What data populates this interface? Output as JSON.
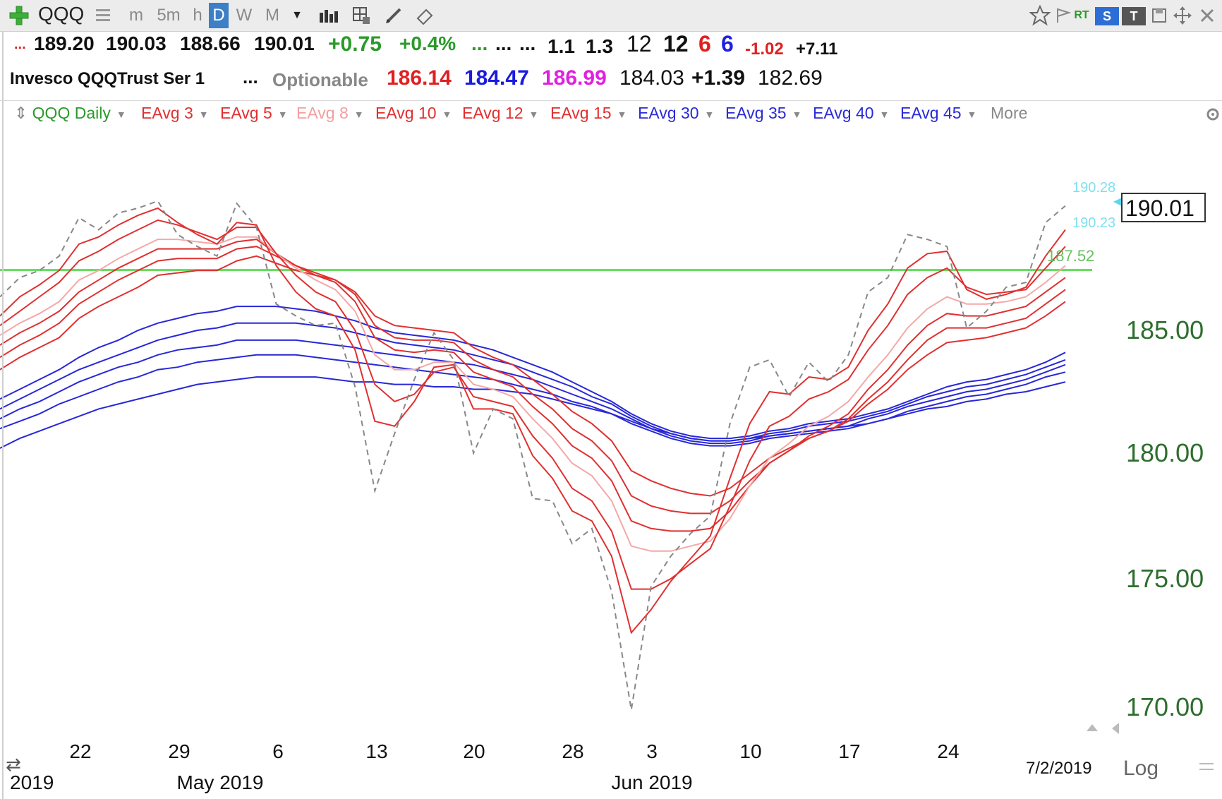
{
  "toolbar": {
    "symbol": "QQQ",
    "intervals": [
      "m",
      "5m",
      "h",
      "D",
      "W",
      "M"
    ],
    "selected_interval": "D",
    "rt_label": "RT",
    "s_label": "S",
    "t_label": "T"
  },
  "quote_row1": {
    "lead": "...",
    "open": "189.20",
    "high": "190.03",
    "low": "188.66",
    "close": "190.01",
    "change": "+0.75",
    "change_pct": "+0.4%",
    "dots1": "...",
    "dots2": "...",
    "dots3": "...",
    "v1": "1.1",
    "v2": "1.3",
    "v3": "12",
    "v4": "12",
    "v5": "6",
    "v6": "6",
    "v7": "-1.02",
    "v8": "+7.11"
  },
  "quote_row2": {
    "name": "Invesco QQQTrust Ser 1",
    "dots": "...",
    "optionable": "Optionable",
    "p1": "186.14",
    "p2": "184.47",
    "p3": "186.99",
    "p4": "184.03",
    "p5": "+1.39",
    "p6": "182.69"
  },
  "studies": {
    "main": "QQQ Daily",
    "items": [
      {
        "label": "EAvg 3",
        "color": "#e03030"
      },
      {
        "label": "EAvg 5",
        "color": "#e03030"
      },
      {
        "label": "EAvg 8",
        "color": "#f2a0a0"
      },
      {
        "label": "EAvg 10",
        "color": "#e03030"
      },
      {
        "label": "EAvg 12",
        "color": "#e03030"
      },
      {
        "label": "EAvg 15",
        "color": "#e03030"
      },
      {
        "label": "EAvg 30",
        "color": "#2a2ad8"
      },
      {
        "label": "EAvg 35",
        "color": "#2a2ad8"
      },
      {
        "label": "EAvg 40",
        "color": "#2a2ad8"
      },
      {
        "label": "EAvg 45",
        "color": "#2a2ad8"
      }
    ],
    "more": "More"
  },
  "chart_data": {
    "type": "line",
    "x_ticks": [
      "22",
      "29",
      "6",
      "13",
      "20",
      "28",
      "3",
      "10",
      "17",
      "24"
    ],
    "month_labels": [
      "2019",
      "May 2019",
      "Jun 2019"
    ],
    "date_label": "7/2/2019",
    "scale_label": "Log",
    "y_ticks": [
      "185.00",
      "180.00",
      "175.00",
      "170.00"
    ],
    "horizontal_line": {
      "value": 187.52,
      "label": "187.52",
      "color": "#66e060"
    },
    "last_price": "190.01",
    "label_upper": "190.28",
    "label_lower": "190.23",
    "close": [
      186.4,
      187.2,
      187.5,
      188.1,
      189.7,
      189.2,
      189.9,
      190.1,
      190.4,
      189.0,
      188.5,
      188.1,
      190.3,
      189.3,
      186.1,
      185.6,
      185.2,
      185.3,
      182.7,
      178.5,
      180.8,
      183.0,
      184.9,
      183.8,
      180.0,
      181.8,
      181.4,
      178.2,
      178.1,
      176.4,
      177.0,
      174.5,
      169.9,
      174.7,
      175.9,
      176.8,
      177.5,
      181.2,
      183.5,
      183.8,
      182.3,
      183.7,
      182.9,
      184.0,
      186.6,
      187.2,
      189.0,
      188.8,
      188.5,
      185.1,
      185.8,
      186.8,
      187.0,
      189.5,
      190.2
    ],
    "series": [
      {
        "values": [
          185.6,
          186.4,
          186.9,
          187.5,
          188.6,
          188.9,
          189.4,
          189.8,
          190.1,
          189.5,
          189.0,
          188.6,
          189.5,
          189.4,
          187.7,
          186.6,
          185.9,
          185.6,
          184.2,
          181.3,
          181.1,
          182.1,
          183.5,
          183.6,
          181.8,
          181.8,
          181.6,
          179.9,
          179.0,
          177.7,
          177.3,
          175.9,
          172.9,
          173.8,
          174.9,
          175.8,
          176.7,
          179.0,
          181.2,
          182.5,
          182.4,
          183.1,
          183.0,
          183.5,
          185.0,
          186.1,
          187.6,
          188.2,
          188.3,
          186.7,
          186.3,
          186.5,
          186.8,
          188.1,
          189.2
        ]
      },
      {
        "values": [
          185.2,
          185.8,
          186.4,
          187.0,
          187.9,
          188.3,
          188.8,
          189.2,
          189.6,
          189.4,
          189.1,
          188.8,
          189.3,
          189.3,
          188.2,
          187.3,
          186.6,
          186.2,
          185.0,
          182.8,
          182.1,
          182.4,
          183.3,
          183.5,
          182.3,
          182.1,
          181.9,
          180.7,
          179.8,
          178.6,
          178.1,
          176.9,
          174.6,
          174.6,
          175.0,
          175.6,
          176.2,
          177.9,
          179.7,
          181.1,
          181.5,
          182.2,
          182.5,
          183.0,
          184.2,
          185.2,
          186.5,
          187.2,
          187.6,
          186.8,
          186.5,
          186.6,
          186.7,
          187.6,
          188.5
        ]
      },
      {
        "values": [
          184.8,
          185.3,
          185.7,
          186.2,
          187.1,
          187.5,
          188.0,
          188.4,
          188.8,
          188.8,
          188.7,
          188.6,
          188.9,
          188.9,
          188.2,
          187.6,
          187.1,
          186.7,
          185.8,
          184.0,
          183.4,
          183.4,
          183.7,
          183.7,
          182.8,
          182.6,
          182.3,
          181.4,
          180.6,
          179.6,
          179.1,
          178.1,
          176.3,
          176.1,
          176.1,
          176.3,
          176.5,
          177.4,
          178.7,
          179.8,
          180.4,
          181.1,
          181.5,
          182.1,
          183.1,
          184.0,
          185.1,
          185.9,
          186.4,
          186.1,
          186.1,
          186.2,
          186.4,
          187.0,
          187.7
        ]
      },
      {
        "values": [
          184.4,
          184.9,
          185.3,
          185.8,
          186.6,
          187.1,
          187.6,
          188.0,
          188.4,
          188.4,
          188.4,
          188.4,
          188.7,
          188.8,
          188.2,
          187.7,
          187.3,
          187.0,
          186.2,
          184.7,
          184.2,
          184.1,
          184.2,
          184.1,
          183.3,
          183.0,
          182.7,
          181.9,
          181.2,
          180.3,
          179.8,
          178.9,
          177.3,
          177.0,
          176.9,
          176.9,
          177.0,
          177.7,
          178.7,
          179.6,
          180.1,
          180.7,
          181.1,
          181.6,
          182.6,
          183.4,
          184.4,
          185.2,
          185.7,
          185.6,
          185.6,
          185.8,
          186.0,
          186.6,
          187.2
        ]
      },
      {
        "values": [
          183.9,
          184.4,
          184.8,
          185.3,
          186.1,
          186.6,
          187.1,
          187.5,
          187.9,
          188.0,
          188.0,
          188.0,
          188.4,
          188.5,
          188.1,
          187.7,
          187.4,
          187.1,
          186.5,
          185.2,
          184.7,
          184.6,
          184.6,
          184.5,
          183.8,
          183.4,
          183.1,
          182.4,
          181.8,
          181.0,
          180.5,
          179.7,
          178.3,
          177.9,
          177.7,
          177.6,
          177.6,
          178.1,
          178.9,
          179.6,
          180.1,
          180.6,
          180.9,
          181.4,
          182.2,
          182.9,
          183.8,
          184.6,
          185.1,
          185.1,
          185.1,
          185.3,
          185.5,
          186.1,
          186.7
        ]
      },
      {
        "values": [
          183.4,
          183.9,
          184.3,
          184.7,
          185.5,
          186.0,
          186.4,
          186.8,
          187.3,
          187.4,
          187.5,
          187.5,
          187.9,
          188.1,
          187.8,
          187.5,
          187.3,
          187.1,
          186.6,
          185.6,
          185.2,
          185.1,
          185.0,
          184.9,
          184.3,
          183.9,
          183.6,
          183.0,
          182.4,
          181.7,
          181.2,
          180.5,
          179.3,
          178.9,
          178.6,
          178.4,
          178.3,
          178.6,
          179.2,
          179.8,
          180.2,
          180.6,
          180.9,
          181.3,
          182.0,
          182.6,
          183.4,
          184.0,
          184.5,
          184.6,
          184.7,
          184.9,
          185.1,
          185.6,
          186.2
        ]
      },
      {
        "values": [
          182.2,
          182.6,
          183.0,
          183.4,
          183.9,
          184.3,
          184.6,
          185.0,
          185.3,
          185.5,
          185.7,
          185.8,
          186.0,
          186.0,
          186.0,
          185.9,
          185.8,
          185.6,
          185.4,
          185.1,
          184.9,
          184.8,
          184.7,
          184.6,
          184.4,
          184.2,
          183.9,
          183.6,
          183.3,
          182.9,
          182.5,
          182.1,
          181.6,
          181.2,
          180.9,
          180.7,
          180.6,
          180.6,
          180.7,
          180.9,
          181.0,
          181.2,
          181.3,
          181.4,
          181.6,
          181.8,
          182.1,
          182.4,
          182.7,
          182.9,
          183.0,
          183.2,
          183.4,
          183.7,
          184.1
        ]
      },
      {
        "values": [
          181.8,
          182.2,
          182.6,
          183.0,
          183.4,
          183.7,
          184.0,
          184.3,
          184.6,
          184.8,
          185.0,
          185.1,
          185.3,
          185.3,
          185.3,
          185.3,
          185.2,
          185.1,
          184.9,
          184.7,
          184.5,
          184.4,
          184.3,
          184.2,
          184.0,
          183.8,
          183.6,
          183.3,
          183.0,
          182.7,
          182.3,
          182.0,
          181.5,
          181.1,
          180.8,
          180.6,
          180.5,
          180.5,
          180.6,
          180.8,
          180.9,
          181.1,
          181.2,
          181.3,
          181.5,
          181.7,
          182.0,
          182.3,
          182.5,
          182.7,
          182.8,
          183.0,
          183.2,
          183.5,
          183.8
        ]
      },
      {
        "values": [
          181.4,
          181.8,
          182.1,
          182.5,
          182.9,
          183.2,
          183.5,
          183.7,
          184.0,
          184.2,
          184.3,
          184.4,
          184.6,
          184.6,
          184.6,
          184.6,
          184.5,
          184.4,
          184.3,
          184.1,
          184.0,
          183.9,
          183.8,
          183.7,
          183.6,
          183.4,
          183.2,
          183.0,
          182.7,
          182.4,
          182.1,
          181.8,
          181.4,
          181.0,
          180.7,
          180.5,
          180.4,
          180.4,
          180.5,
          180.7,
          180.8,
          180.9,
          181.0,
          181.1,
          181.4,
          181.6,
          181.9,
          182.1,
          182.3,
          182.5,
          182.6,
          182.8,
          183.0,
          183.3,
          183.6
        ]
      },
      {
        "values": [
          181.0,
          181.3,
          181.6,
          182.0,
          182.3,
          182.6,
          182.9,
          183.1,
          183.4,
          183.5,
          183.7,
          183.8,
          183.9,
          184.0,
          184.0,
          184.0,
          183.9,
          183.8,
          183.7,
          183.6,
          183.5,
          183.4,
          183.3,
          183.2,
          183.1,
          183.0,
          182.8,
          182.6,
          182.4,
          182.1,
          181.9,
          181.6,
          181.2,
          180.9,
          180.6,
          180.4,
          180.3,
          180.3,
          180.4,
          180.6,
          180.7,
          180.8,
          180.9,
          181.0,
          181.2,
          181.4,
          181.7,
          181.9,
          182.1,
          182.3,
          182.4,
          182.6,
          182.8,
          183.1,
          183.3
        ]
      },
      {
        "values": [
          180.2,
          180.6,
          180.9,
          181.2,
          181.5,
          181.8,
          182.0,
          182.2,
          182.4,
          182.6,
          182.8,
          182.9,
          183.0,
          183.1,
          183.1,
          183.1,
          183.1,
          183.0,
          182.9,
          182.9,
          182.8,
          182.8,
          182.7,
          182.7,
          182.6,
          182.6,
          182.5,
          182.4,
          182.2,
          182.0,
          181.8,
          181.6,
          181.3,
          181.0,
          180.8,
          180.6,
          180.5,
          180.5,
          180.6,
          180.7,
          180.8,
          180.9,
          181.0,
          181.1,
          181.2,
          181.4,
          181.6,
          181.8,
          181.9,
          182.1,
          182.2,
          182.4,
          182.5,
          182.7,
          182.9
        ]
      }
    ],
    "series_colors": [
      "#e03030",
      "#e03030",
      "#f4a8a8",
      "#e03030",
      "#e03030",
      "#e03030",
      "#2828d8",
      "#2828d8",
      "#2828d8",
      "#2828d8",
      "#2828d8"
    ]
  }
}
